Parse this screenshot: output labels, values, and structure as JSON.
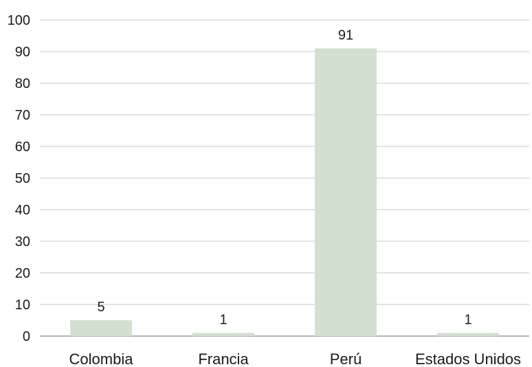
{
  "chart_data": {
    "type": "bar",
    "title": "",
    "xlabel": "",
    "ylabel": "",
    "categories": [
      "Colombia",
      "Francia",
      "Perú",
      "Estados Unidos"
    ],
    "values": [
      5,
      1,
      91,
      1
    ],
    "data_labels": [
      "5",
      "1",
      "91",
      "1"
    ],
    "yticks": [
      0,
      10,
      20,
      30,
      40,
      50,
      60,
      70,
      80,
      90,
      100
    ],
    "ylim": [
      0,
      100
    ],
    "grid": true,
    "legend": "none",
    "bar_color": "#d3e0d0"
  }
}
